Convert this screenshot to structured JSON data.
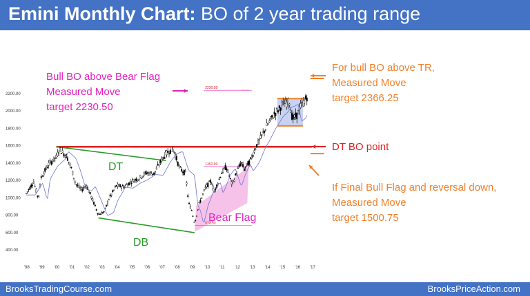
{
  "header": {
    "title_bold": "Emini Monthly Chart:",
    "title_rest": " BO of 2 year trading range"
  },
  "footer": {
    "left": "BrooksTradingCourse.com",
    "right": "BrooksPriceAction.com"
  },
  "colors": {
    "header_bg": "#4472c4",
    "magenta": "#e020c0",
    "orange": "#f0802a",
    "red": "#e02020",
    "green": "#2a9a2a",
    "candle": "#000000",
    "ma": "#7b7fd6",
    "range_box": "#9aaee6",
    "bear_flag": "#f3a8e0"
  },
  "annotations": {
    "bull_bo_bear_flag": [
      "Bull BO above Bear Flag",
      "Measured Move",
      "target 2230.50"
    ],
    "bull_bo_tr": [
      "For bull BO above TR,",
      "Measured Move",
      "target 2366.25"
    ],
    "dt_bo_point": "DT BO point",
    "final_bull_flag": [
      "If Final Bull Flag and reversal down,",
      "Measured Move",
      "target 1500.75"
    ],
    "dt": "DT",
    "db": "DB",
    "bear_flag": "Bear Flag",
    "level_2230": "2230.50",
    "level_1352": "1352.00",
    "level_673": "673.50"
  },
  "chart_data": {
    "type": "line",
    "title": "",
    "xlabel": "",
    "ylabel": "",
    "x_ticks": [
      "'98",
      "'99",
      "'00",
      "'01",
      "'02",
      "'03",
      "'04",
      "'05",
      "'06",
      "'07",
      "'08",
      "'09",
      "'10",
      "'11",
      "'12",
      "'13",
      "'14",
      "'15",
      "'16",
      "'17"
    ],
    "y_ticks": [
      "2200.00",
      "2000.00",
      "1800.00",
      "1600.00",
      "1400.00",
      "1200.00",
      "1000.00",
      "800.00",
      "600.00",
      "400.00"
    ],
    "ylim": [
      400,
      2300
    ],
    "xlim": [
      1998.0,
      2017.0
    ],
    "series": [
      {
        "values": [
          [
            1998.0,
            1040
          ],
          [
            1998.5,
            1180
          ],
          [
            1998.8,
            980
          ],
          [
            1999.0,
            1230
          ],
          [
            1999.5,
            1380
          ],
          [
            2000.0,
            1460
          ],
          [
            2000.2,
            1550
          ],
          [
            2000.7,
            1470
          ],
          [
            2001.0,
            1330
          ],
          [
            2001.3,
            1150
          ],
          [
            2001.7,
            1080
          ],
          [
            2002.0,
            1140
          ],
          [
            2002.5,
            930
          ],
          [
            2002.8,
            800
          ],
          [
            2003.2,
            830
          ],
          [
            2003.5,
            980
          ],
          [
            2004.0,
            1130
          ],
          [
            2004.5,
            1120
          ],
          [
            2005.0,
            1180
          ],
          [
            2005.5,
            1220
          ],
          [
            2006.0,
            1280
          ],
          [
            2006.5,
            1270
          ],
          [
            2007.0,
            1430
          ],
          [
            2007.4,
            1520
          ],
          [
            2007.8,
            1550
          ],
          [
            2008.2,
            1330
          ],
          [
            2008.6,
            1270
          ],
          [
            2008.8,
            930
          ],
          [
            2009.0,
            850
          ],
          [
            2009.2,
            700
          ],
          [
            2009.5,
            920
          ],
          [
            2009.9,
            1100
          ],
          [
            2010.3,
            1190
          ],
          [
            2010.5,
            1060
          ],
          [
            2011.0,
            1280
          ],
          [
            2011.3,
            1350
          ],
          [
            2011.7,
            1140
          ],
          [
            2012.0,
            1290
          ],
          [
            2012.3,
            1400
          ],
          [
            2012.5,
            1320
          ],
          [
            2012.9,
            1420
          ],
          [
            2013.3,
            1590
          ],
          [
            2013.6,
            1680
          ],
          [
            2014.0,
            1820
          ],
          [
            2014.5,
            1960
          ],
          [
            2014.8,
            2010
          ],
          [
            2015.0,
            2060
          ],
          [
            2015.5,
            2100
          ],
          [
            2015.7,
            1900
          ],
          [
            2016.0,
            1940
          ],
          [
            2016.2,
            2030
          ],
          [
            2016.5,
            2110
          ],
          [
            2016.7,
            2160
          ]
        ]
      }
    ],
    "levels": [
      {
        "label": "2230.50",
        "value": 2230.5
      },
      {
        "label": "1352.00",
        "value": 1352.0
      },
      {
        "label": "673.50",
        "value": 673.5
      },
      {
        "label": "DT BO point",
        "value": 1580
      },
      {
        "label": "target 2366.25",
        "value": 2366.25
      },
      {
        "label": "target 1500.75",
        "value": 1500.75
      }
    ],
    "trading_range": {
      "x": [
        2014.7,
        2016.4
      ],
      "y": [
        1820,
        2135
      ]
    },
    "grid": false,
    "legend": "none"
  }
}
